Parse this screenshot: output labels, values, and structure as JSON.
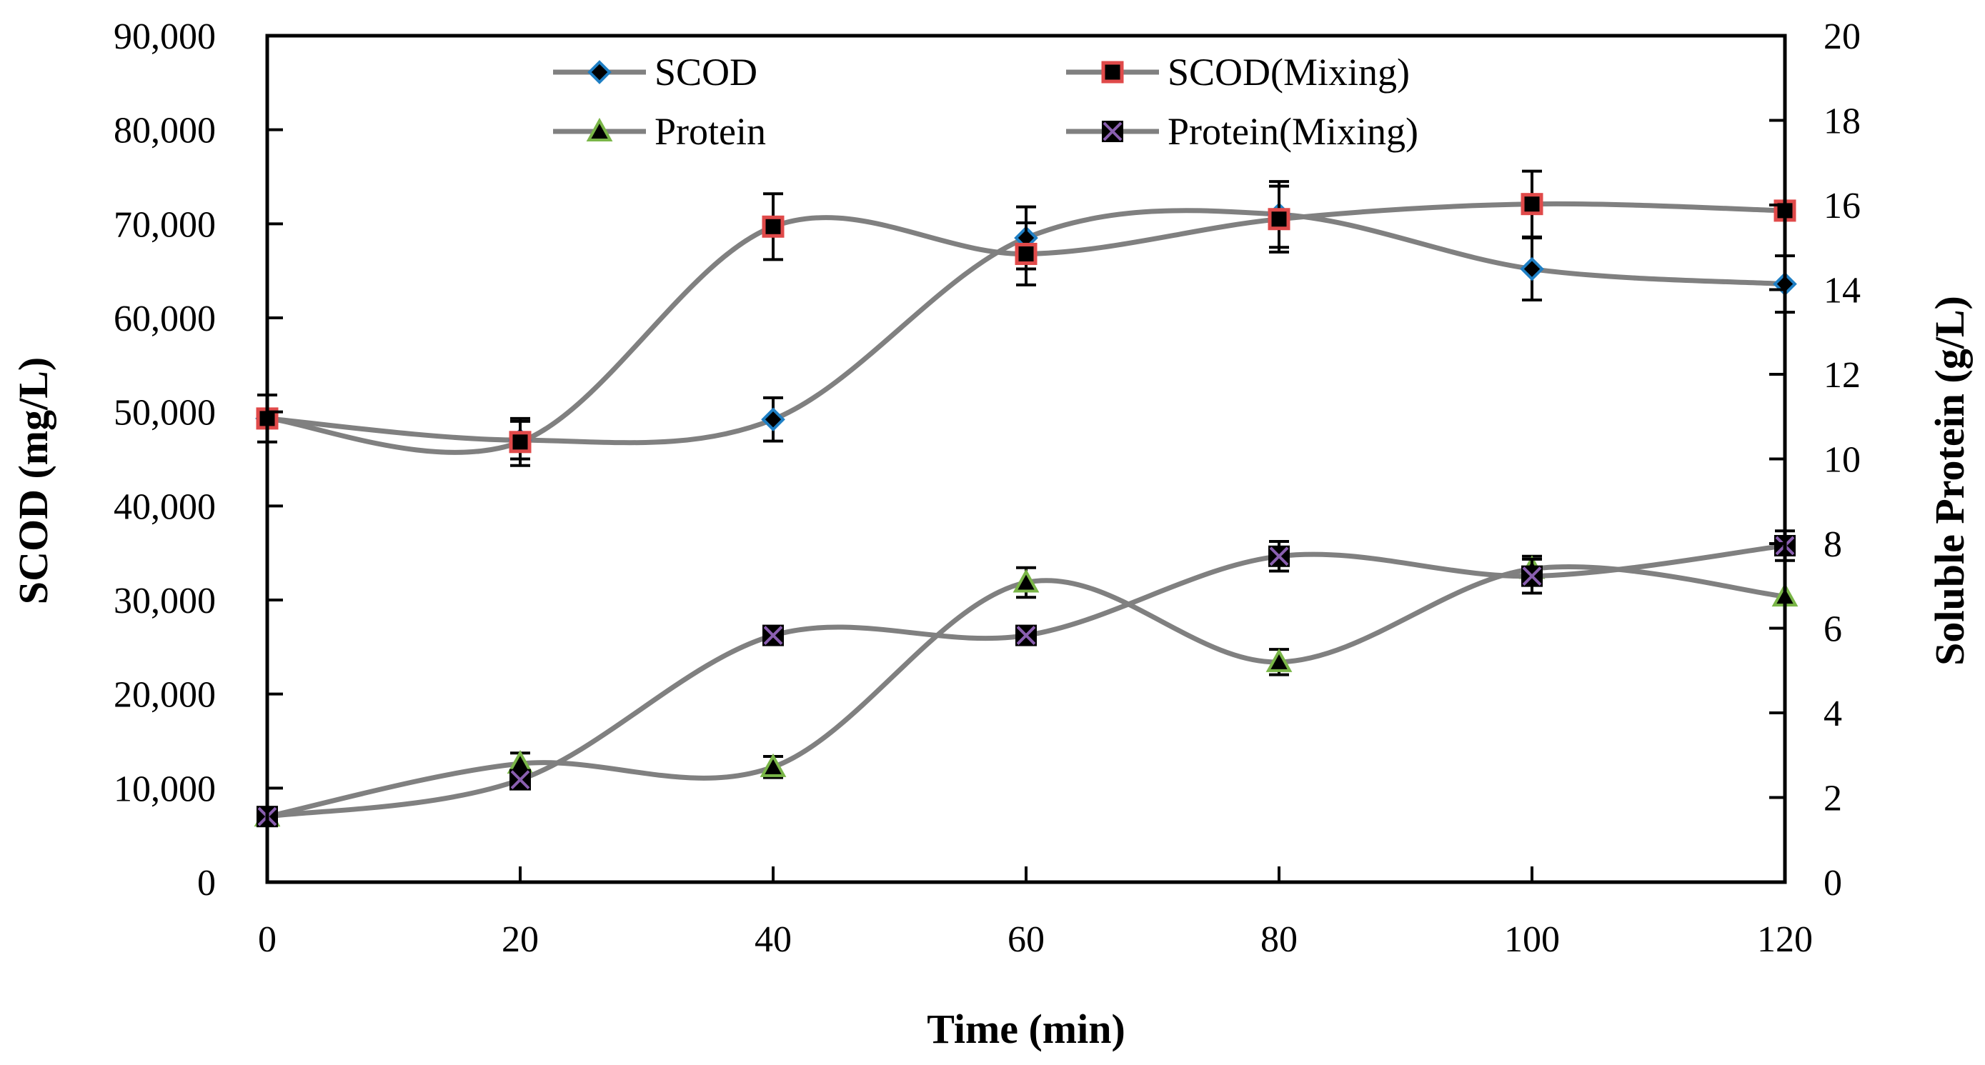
{
  "chart_data": {
    "type": "line",
    "title": "",
    "xlabel": "Time (min)",
    "ylabel": "SCOD (mg/L)",
    "y2label": "Soluble Protein (g/L)",
    "xlim": [
      0,
      120
    ],
    "ylim": [
      0,
      90000
    ],
    "y2lim": [
      0,
      20
    ],
    "x_ticks": [
      "0",
      "20",
      "40",
      "60",
      "80",
      "100",
      "120"
    ],
    "y_ticks": [
      "0",
      "10,000",
      "20,000",
      "30,000",
      "40,000",
      "50,000",
      "60,000",
      "70,000",
      "80,000",
      "90,000"
    ],
    "y2_ticks": [
      "0",
      "2",
      "4",
      "6",
      "8",
      "10",
      "12",
      "14",
      "16",
      "18",
      "20"
    ],
    "grid": false,
    "legend_position": "top",
    "x": [
      0,
      20,
      40,
      60,
      80,
      100,
      120
    ],
    "series": [
      {
        "name": "SCOD",
        "axis": "left",
        "marker": "diamond",
        "marker_color": "#1f7fc4",
        "values": [
          49300,
          47000,
          49200,
          68500,
          71000,
          65200,
          63600
        ],
        "errors": [
          2500,
          2000,
          2300,
          3300,
          3500,
          3300,
          3000
        ]
      },
      {
        "name": "SCOD(Mixing)",
        "axis": "left",
        "marker": "square",
        "marker_color": "#e04a4a",
        "values": [
          49300,
          46800,
          69700,
          66800,
          70500,
          72100,
          71400
        ],
        "errors": [
          0,
          2500,
          3500,
          3300,
          3500,
          3500,
          0
        ]
      },
      {
        "name": "Protein",
        "axis": "right",
        "marker": "triangle",
        "marker_color": "#7ab648",
        "values": [
          1.55,
          2.8,
          2.72,
          7.08,
          5.2,
          7.4,
          6.75
        ],
        "errors": [
          0,
          0.25,
          0.25,
          0.35,
          0.3,
          0.3,
          0
        ]
      },
      {
        "name": "Protein(Mixing)",
        "axis": "right",
        "marker": "x-square",
        "marker_color": "#8a5fb0",
        "values": [
          1.55,
          2.42,
          5.83,
          5.83,
          7.7,
          7.23,
          7.95
        ],
        "errors": [
          0,
          0,
          0.2,
          0,
          0.35,
          0.4,
          0.35
        ]
      }
    ],
    "line_color": "#808080"
  }
}
